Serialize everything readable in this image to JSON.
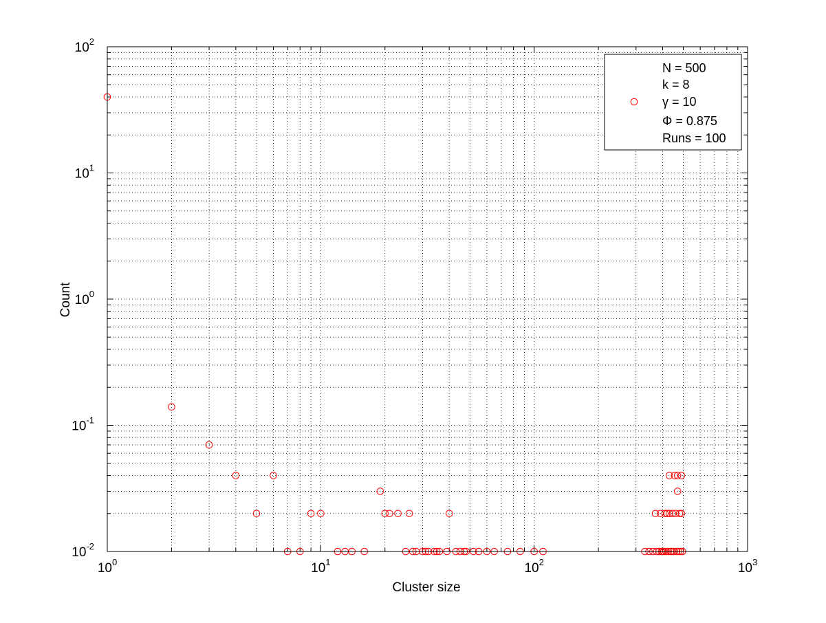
{
  "chart_data": {
    "type": "scatter",
    "xlabel": "Cluster size",
    "ylabel": "Count",
    "x_scale": "log",
    "y_scale": "log",
    "xlim": [
      1,
      1000
    ],
    "ylim": [
      0.01,
      100
    ],
    "grid": true,
    "x_ticks": [
      {
        "value": 1,
        "base": "10",
        "exp": "0"
      },
      {
        "value": 10,
        "base": "10",
        "exp": "1"
      },
      {
        "value": 100,
        "base": "10",
        "exp": "2"
      },
      {
        "value": 1000,
        "base": "10",
        "exp": "3"
      }
    ],
    "y_ticks": [
      {
        "value": 0.01,
        "base": "10",
        "exp": "-2"
      },
      {
        "value": 0.1,
        "base": "10",
        "exp": "-1"
      },
      {
        "value": 1,
        "base": "10",
        "exp": "0"
      },
      {
        "value": 10,
        "base": "10",
        "exp": "1"
      },
      {
        "value": 100,
        "base": "10",
        "exp": "2"
      }
    ],
    "legend": {
      "placement": "top-right",
      "entries": [
        "N = 500",
        "k = 8",
        "γ = 10",
        "Φ = 0.875",
        "Runs = 100"
      ]
    },
    "series": [
      {
        "marker": "circle",
        "color": "#ff0000",
        "points": [
          [
            1,
            40
          ],
          [
            2,
            0.14
          ],
          [
            3,
            0.07
          ],
          [
            4,
            0.04
          ],
          [
            5,
            0.02
          ],
          [
            6,
            0.04
          ],
          [
            7,
            0.01
          ],
          [
            8,
            0.01
          ],
          [
            9,
            0.02
          ],
          [
            10,
            0.02
          ],
          [
            12,
            0.01
          ],
          [
            13,
            0.01
          ],
          [
            14,
            0.01
          ],
          [
            16,
            0.01
          ],
          [
            19,
            0.03
          ],
          [
            20,
            0.02
          ],
          [
            21,
            0.02
          ],
          [
            23,
            0.02
          ],
          [
            25,
            0.01
          ],
          [
            26,
            0.02
          ],
          [
            27,
            0.01
          ],
          [
            28,
            0.01
          ],
          [
            30,
            0.01
          ],
          [
            31,
            0.01
          ],
          [
            32,
            0.01
          ],
          [
            34,
            0.01
          ],
          [
            35,
            0.01
          ],
          [
            36,
            0.01
          ],
          [
            39,
            0.01
          ],
          [
            40,
            0.02
          ],
          [
            43,
            0.01
          ],
          [
            45,
            0.01
          ],
          [
            47,
            0.01
          ],
          [
            48,
            0.01
          ],
          [
            52,
            0.01
          ],
          [
            55,
            0.01
          ],
          [
            60,
            0.01
          ],
          [
            65,
            0.01
          ],
          [
            75,
            0.01
          ],
          [
            86,
            0.01
          ],
          [
            100,
            0.01
          ],
          [
            110,
            0.01
          ],
          [
            330,
            0.01
          ],
          [
            345,
            0.01
          ],
          [
            360,
            0.01
          ],
          [
            370,
            0.02
          ],
          [
            375,
            0.01
          ],
          [
            385,
            0.01
          ],
          [
            390,
            0.02
          ],
          [
            395,
            0.01
          ],
          [
            400,
            0.01
          ],
          [
            405,
            0.01
          ],
          [
            410,
            0.02
          ],
          [
            415,
            0.01
          ],
          [
            420,
            0.02
          ],
          [
            425,
            0.01
          ],
          [
            430,
            0.04
          ],
          [
            430,
            0.02
          ],
          [
            435,
            0.01
          ],
          [
            440,
            0.01
          ],
          [
            445,
            0.02
          ],
          [
            450,
            0.01
          ],
          [
            455,
            0.04
          ],
          [
            460,
            0.02
          ],
          [
            465,
            0.01
          ],
          [
            470,
            0.03
          ],
          [
            470,
            0.04
          ],
          [
            475,
            0.01
          ],
          [
            480,
            0.02
          ],
          [
            485,
            0.01
          ],
          [
            490,
            0.04
          ],
          [
            490,
            0.02
          ],
          [
            495,
            0.01
          ]
        ]
      }
    ]
  }
}
